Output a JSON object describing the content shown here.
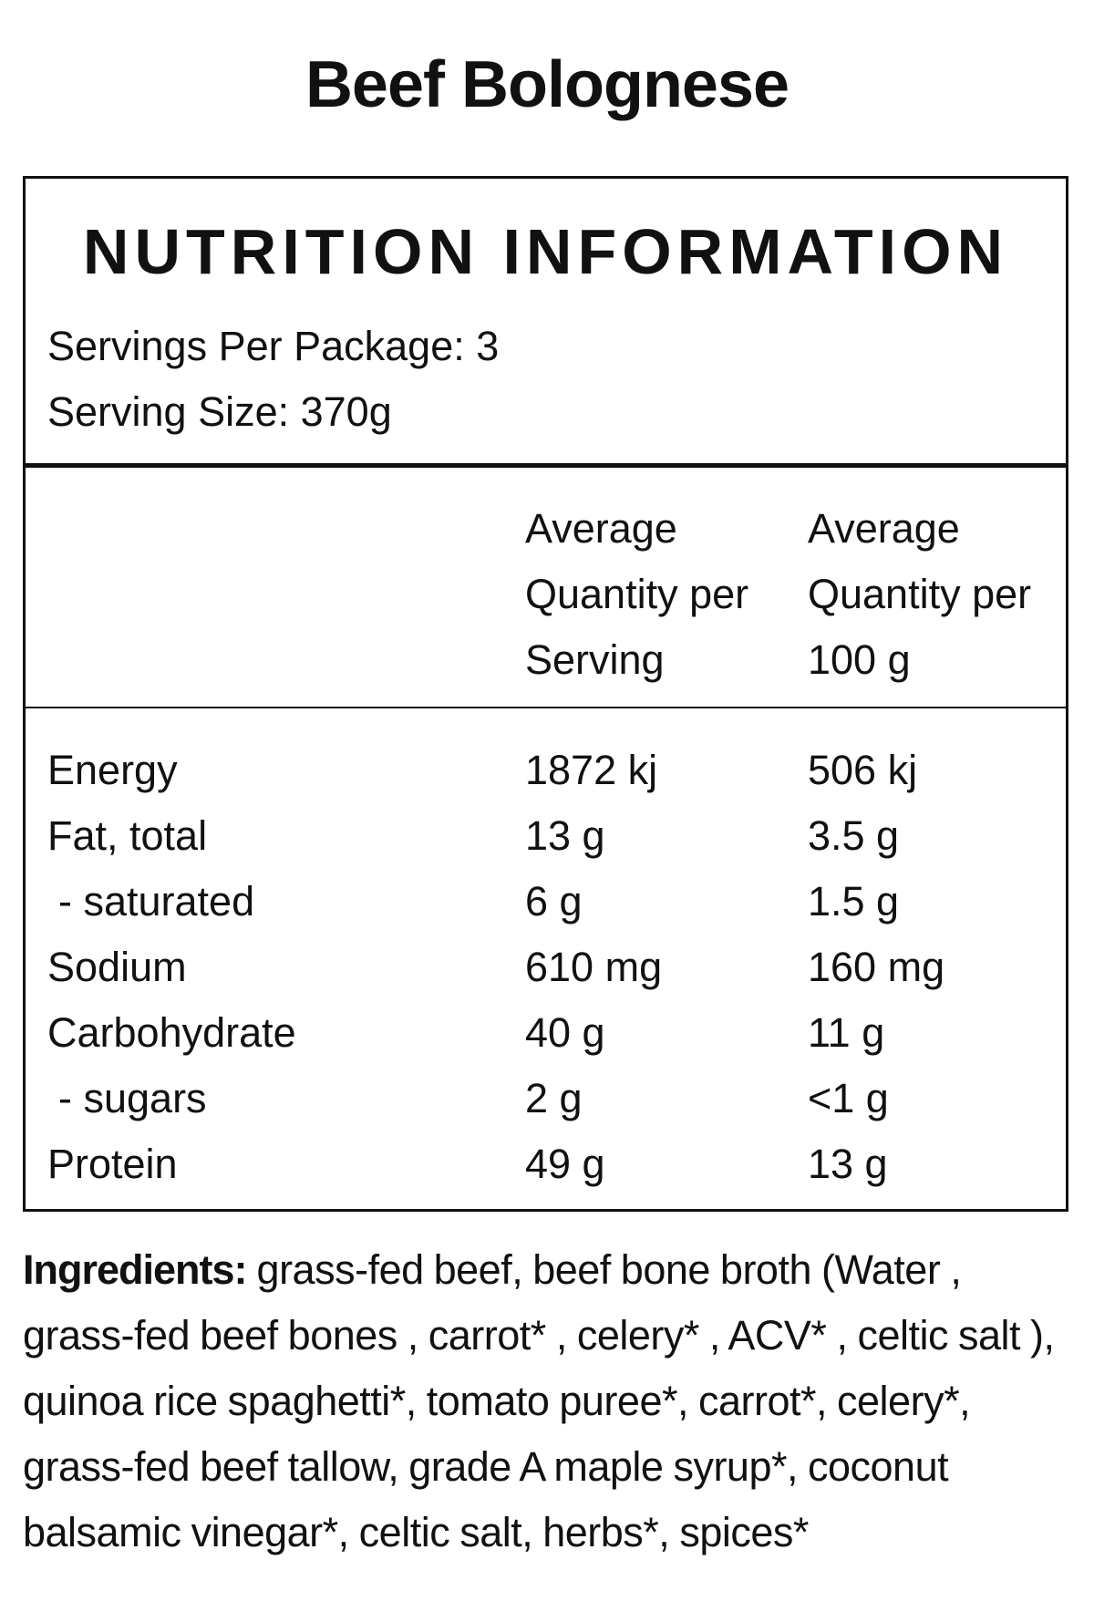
{
  "product": {
    "title": "Beef Bolognese"
  },
  "nutrition": {
    "heading": "NUTRITION INFORMATION",
    "servings_per_package": "Servings Per Package: 3",
    "serving_size": "Serving Size: 370g",
    "columns": {
      "per_serving": [
        "Average",
        "Quantity per",
        "Serving"
      ],
      "per_100g": [
        "Average",
        "Quantity per",
        "100 g"
      ]
    },
    "rows": [
      {
        "name": "Energy",
        "per_serving": "1872 kj",
        "per_100g": "506 kj"
      },
      {
        "name": "Fat, total",
        "per_serving": "13 g",
        "per_100g": "3.5 g"
      },
      {
        "name": "- saturated",
        "per_serving": "6 g",
        "per_100g": "1.5 g"
      },
      {
        "name": "Sodium",
        "per_serving": "610 mg",
        "per_100g": "160 mg"
      },
      {
        "name": "Carbohydrate",
        "per_serving": "40 g",
        "per_100g": "11 g"
      },
      {
        "name": "- sugars",
        "per_serving": "2 g",
        "per_100g": "<1 g"
      },
      {
        "name": "Protein",
        "per_serving": "49 g",
        "per_100g": "13 g"
      }
    ]
  },
  "ingredients": {
    "label": "Ingredients:",
    "text": "grass-fed beef, beef bone broth (Water , grass-fed beef bones , carrot* , celery* , ACV* , celtic salt ), quinoa rice spaghetti*, tomato puree*, carrot*, celery*, grass-fed beef tallow, grade A maple syrup*, coconut balsamic vinegar*, celtic salt, herbs*, spices*"
  }
}
